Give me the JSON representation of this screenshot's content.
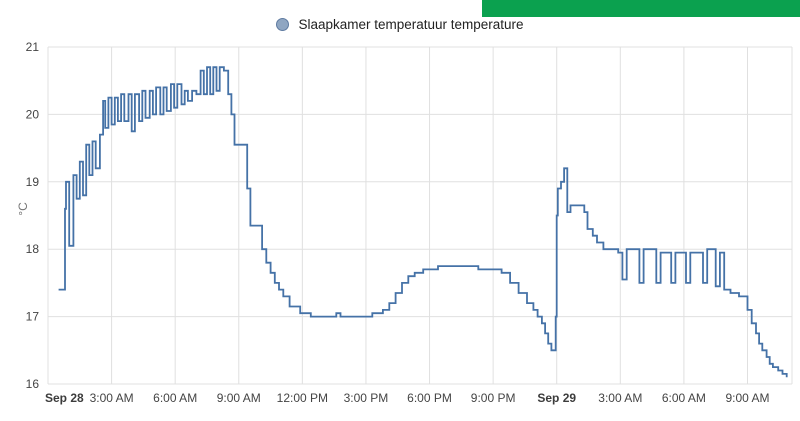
{
  "chart_data": {
    "type": "line",
    "step": true,
    "title": "",
    "series_name": "Slaapkamer temperatuur temperature",
    "ylabel": "°C",
    "xlabel": "",
    "x_unit": "hours since Sep 28 00:00",
    "xlim": [
      0,
      35.1
    ],
    "ylim": [
      16,
      21
    ],
    "grid": true,
    "legend_position": "top-center",
    "y_ticks": [
      16,
      17,
      18,
      19,
      20,
      21
    ],
    "x_ticks": [
      {
        "t": 0,
        "label": "Sep 28",
        "bold": true
      },
      {
        "t": 3,
        "label": "3:00 AM",
        "bold": false
      },
      {
        "t": 6,
        "label": "6:00 AM",
        "bold": false
      },
      {
        "t": 9,
        "label": "9:00 AM",
        "bold": false
      },
      {
        "t": 12,
        "label": "12:00 PM",
        "bold": false
      },
      {
        "t": 15,
        "label": "3:00 PM",
        "bold": false
      },
      {
        "t": 18,
        "label": "6:00 PM",
        "bold": false
      },
      {
        "t": 21,
        "label": "9:00 PM",
        "bold": false
      },
      {
        "t": 24,
        "label": "Sep 29",
        "bold": true
      },
      {
        "t": 27,
        "label": "3:00 AM",
        "bold": false
      },
      {
        "t": 30,
        "label": "6:00 AM",
        "bold": false
      },
      {
        "t": 33,
        "label": "9:00 AM",
        "bold": false
      }
    ],
    "points": [
      [
        0.5,
        17.4
      ],
      [
        0.8,
        18.6
      ],
      [
        0.85,
        19.0
      ],
      [
        1.0,
        18.05
      ],
      [
        1.2,
        19.1
      ],
      [
        1.35,
        18.75
      ],
      [
        1.5,
        19.3
      ],
      [
        1.65,
        18.8
      ],
      [
        1.8,
        19.55
      ],
      [
        1.95,
        19.1
      ],
      [
        2.1,
        19.6
      ],
      [
        2.25,
        19.2
      ],
      [
        2.45,
        19.7
      ],
      [
        2.6,
        20.2
      ],
      [
        2.7,
        19.8
      ],
      [
        2.85,
        20.25
      ],
      [
        3.0,
        19.85
      ],
      [
        3.15,
        20.25
      ],
      [
        3.3,
        19.9
      ],
      [
        3.45,
        20.3
      ],
      [
        3.6,
        19.9
      ],
      [
        3.8,
        20.3
      ],
      [
        3.95,
        19.75
      ],
      [
        4.1,
        20.3
      ],
      [
        4.3,
        19.9
      ],
      [
        4.45,
        20.35
      ],
      [
        4.6,
        19.95
      ],
      [
        4.8,
        20.35
      ],
      [
        4.95,
        20.0
      ],
      [
        5.1,
        20.4
      ],
      [
        5.3,
        20.0
      ],
      [
        5.45,
        20.4
      ],
      [
        5.6,
        20.05
      ],
      [
        5.8,
        20.45
      ],
      [
        5.95,
        20.1
      ],
      [
        6.1,
        20.45
      ],
      [
        6.3,
        20.15
      ],
      [
        6.45,
        20.35
      ],
      [
        6.6,
        20.2
      ],
      [
        6.8,
        20.35
      ],
      [
        7.0,
        20.3
      ],
      [
        7.2,
        20.65
      ],
      [
        7.35,
        20.3
      ],
      [
        7.5,
        20.7
      ],
      [
        7.65,
        20.3
      ],
      [
        7.8,
        20.7
      ],
      [
        7.95,
        20.35
      ],
      [
        8.1,
        20.7
      ],
      [
        8.3,
        20.65
      ],
      [
        8.5,
        20.3
      ],
      [
        8.65,
        20.0
      ],
      [
        8.8,
        19.55
      ],
      [
        9.4,
        18.9
      ],
      [
        9.55,
        18.35
      ],
      [
        10.1,
        18.0
      ],
      [
        10.3,
        17.8
      ],
      [
        10.5,
        17.65
      ],
      [
        10.7,
        17.5
      ],
      [
        10.9,
        17.4
      ],
      [
        11.1,
        17.3
      ],
      [
        11.4,
        17.15
      ],
      [
        11.9,
        17.05
      ],
      [
        12.4,
        17.0
      ],
      [
        13.6,
        17.05
      ],
      [
        13.8,
        17.0
      ],
      [
        15.3,
        17.05
      ],
      [
        15.8,
        17.1
      ],
      [
        16.1,
        17.2
      ],
      [
        16.4,
        17.35
      ],
      [
        16.7,
        17.5
      ],
      [
        17.0,
        17.6
      ],
      [
        17.3,
        17.65
      ],
      [
        17.7,
        17.7
      ],
      [
        18.4,
        17.75
      ],
      [
        20.3,
        17.7
      ],
      [
        21.4,
        17.65
      ],
      [
        21.8,
        17.5
      ],
      [
        22.2,
        17.35
      ],
      [
        22.6,
        17.2
      ],
      [
        22.9,
        17.1
      ],
      [
        23.1,
        17.0
      ],
      [
        23.3,
        16.9
      ],
      [
        23.45,
        16.75
      ],
      [
        23.6,
        16.6
      ],
      [
        23.75,
        16.5
      ],
      [
        23.95,
        17.0
      ],
      [
        24.0,
        18.5
      ],
      [
        24.05,
        18.9
      ],
      [
        24.2,
        19.0
      ],
      [
        24.35,
        19.2
      ],
      [
        24.5,
        18.55
      ],
      [
        24.65,
        18.65
      ],
      [
        25.3,
        18.55
      ],
      [
        25.45,
        18.3
      ],
      [
        25.7,
        18.2
      ],
      [
        25.9,
        18.1
      ],
      [
        26.2,
        18.0
      ],
      [
        26.9,
        17.95
      ],
      [
        27.1,
        17.55
      ],
      [
        27.3,
        18.0
      ],
      [
        27.9,
        17.5
      ],
      [
        28.1,
        18.0
      ],
      [
        28.7,
        17.5
      ],
      [
        28.9,
        17.95
      ],
      [
        29.4,
        17.5
      ],
      [
        29.6,
        17.95
      ],
      [
        30.1,
        17.5
      ],
      [
        30.3,
        17.95
      ],
      [
        30.9,
        17.5
      ],
      [
        31.1,
        18.0
      ],
      [
        31.5,
        17.45
      ],
      [
        31.7,
        17.95
      ],
      [
        31.9,
        17.4
      ],
      [
        32.2,
        17.35
      ],
      [
        32.6,
        17.3
      ],
      [
        33.0,
        17.1
      ],
      [
        33.2,
        16.9
      ],
      [
        33.4,
        16.75
      ],
      [
        33.55,
        16.6
      ],
      [
        33.7,
        16.5
      ],
      [
        33.9,
        16.4
      ],
      [
        34.05,
        16.3
      ],
      [
        34.2,
        16.25
      ],
      [
        34.45,
        16.2
      ],
      [
        34.65,
        16.15
      ],
      [
        34.85,
        16.1
      ]
    ],
    "colors": {
      "line": "#4572a7",
      "grid": "#e0e0e0",
      "tick_text": "#444444",
      "date_tick_text": "#3c3c3c",
      "legend_text": "#222222",
      "ylabel_text": "#757575",
      "legend_marker_fill": "#8fa6c2",
      "legend_marker_border": "#5f7ba1",
      "corner_green": "#0ba14f",
      "background": "#ffffff"
    }
  }
}
